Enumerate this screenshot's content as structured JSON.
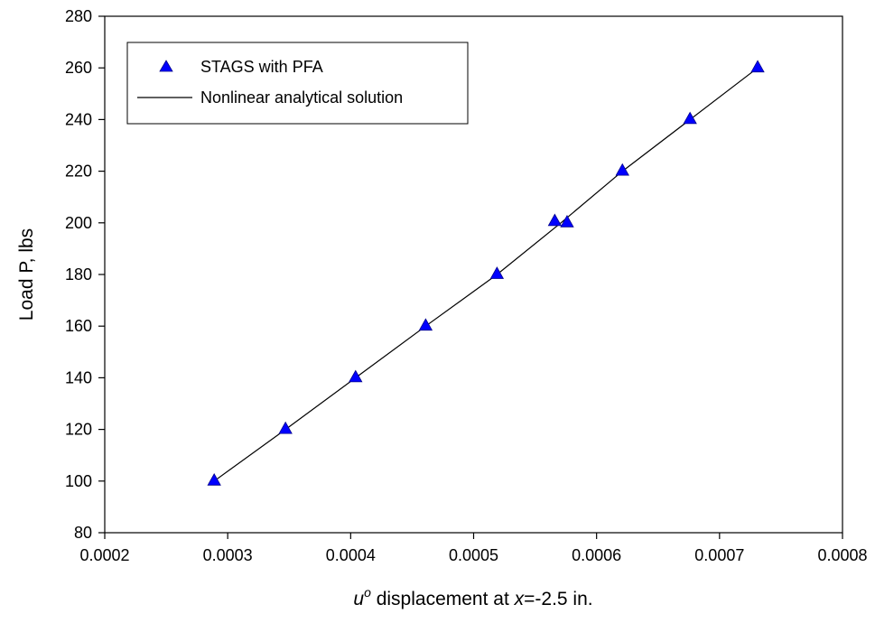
{
  "chart_data": {
    "type": "scatter",
    "title": "",
    "xlabel": {
      "var": "u",
      "sup": "o",
      "mid": " displacement at ",
      "var2": "x",
      "tail": "=-2.5 in."
    },
    "ylabel": "Load P, lbs",
    "xlim": [
      0.0002,
      0.0008
    ],
    "ylim": [
      80,
      280
    ],
    "xticks": [
      "0.0002",
      "0.0003",
      "0.0004",
      "0.0005",
      "0.0006",
      "0.0007",
      "0.0008"
    ],
    "yticks": [
      "80",
      "100",
      "120",
      "140",
      "160",
      "180",
      "200",
      "220",
      "240",
      "260",
      "280"
    ],
    "legend_position": "top-left",
    "grid": false,
    "series": [
      {
        "name": "STAGS with PFA",
        "kind": "scatter",
        "marker": "triangle",
        "color": "#0000ff",
        "points": [
          [
            0.000289,
            100
          ],
          [
            0.000347,
            120
          ],
          [
            0.000404,
            140
          ],
          [
            0.000461,
            160
          ],
          [
            0.000519,
            180
          ],
          [
            0.000566,
            200.5
          ],
          [
            0.000576,
            200
          ],
          [
            0.000621,
            220
          ],
          [
            0.000676,
            240
          ],
          [
            0.000731,
            260
          ]
        ]
      },
      {
        "name": "Nonlinear analytical solution",
        "kind": "line",
        "color": "#000000",
        "points": [
          [
            0.000289,
            100
          ],
          [
            0.000347,
            120
          ],
          [
            0.000404,
            140
          ],
          [
            0.000461,
            160
          ],
          [
            0.000519,
            180
          ],
          [
            0.000571,
            200
          ],
          [
            0.000621,
            220
          ],
          [
            0.000676,
            240
          ],
          [
            0.000731,
            260
          ]
        ]
      }
    ]
  }
}
